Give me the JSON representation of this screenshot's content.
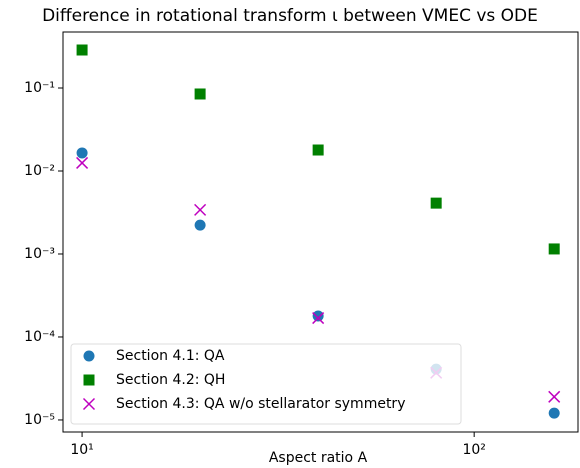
{
  "chart_data": {
    "type": "scatter",
    "title": "Difference in rotational transform ι between VMEC vs ODE",
    "x_label": "Aspect ratio A",
    "x": [
      10,
      20,
      40,
      80,
      160
    ],
    "series": [
      {
        "name": "Section 4.1: QA",
        "color": "#1f77b4",
        "marker": "circle",
        "values": [
          0.0165,
          0.00223,
          0.000179,
          4.1e-05,
          1.21e-05
        ]
      },
      {
        "name": "Section 4.2: QH",
        "color": "#008000",
        "marker": "square",
        "values": [
          0.287,
          0.0847,
          0.0179,
          0.0041,
          0.00115
        ]
      },
      {
        "name": "Section 4.3: QA w/o stellarator symmetry",
        "color": "#bf00bf",
        "marker": "x",
        "values": [
          0.0125,
          0.0034,
          0.000169,
          3.7e-05,
          1.9e-05
        ]
      }
    ],
    "xlog": true,
    "ylog": true,
    "xlim": [
      8.94,
      184
    ],
    "ylim": [
      7.16e-06,
      0.473
    ],
    "xticks": [
      {
        "value": 10,
        "label": "10¹"
      },
      {
        "value": 100,
        "label": "10²"
      }
    ],
    "yticks": [
      {
        "value": 1e-05,
        "label": "10⁻⁵"
      },
      {
        "value": 0.0001,
        "label": "10⁻⁴"
      },
      {
        "value": 0.001,
        "label": "10⁻³"
      },
      {
        "value": 0.01,
        "label": "10⁻²"
      },
      {
        "value": 0.1,
        "label": "10⁻¹"
      }
    ],
    "legend": "lower left"
  }
}
